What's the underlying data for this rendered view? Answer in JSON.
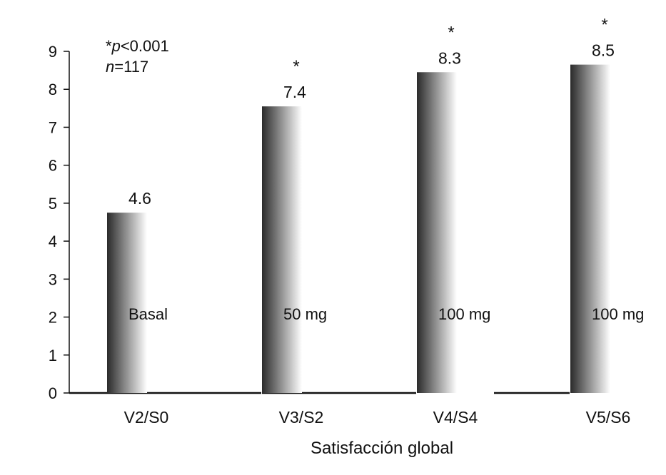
{
  "chart_data": {
    "type": "bar",
    "xlabel": "Satisfacción global",
    "ylabel": "",
    "ylim": [
      0,
      9
    ],
    "yticks": [
      "0",
      "1",
      "2",
      "3",
      "4",
      "5",
      "6",
      "7",
      "8",
      "9"
    ],
    "categories": [
      "V2/S0",
      "V3/S2",
      "V4/S4",
      "V5/S6"
    ],
    "values": [
      4.6,
      7.4,
      8.3,
      8.5
    ],
    "value_labels": [
      "4.6",
      "7.4",
      "8.3",
      "8.5"
    ],
    "dose_labels": [
      "Basal",
      "50 mg",
      "100 mg",
      "100 mg"
    ],
    "significance": [
      "",
      "*",
      "*",
      "*"
    ],
    "annotation": {
      "star": "*",
      "p_italic": "p",
      "p_rest": "<0.001",
      "n_italic": "n",
      "n_rest": "=117"
    },
    "bar_gradient": [
      "#2a2a2a",
      "#8a8a8a",
      "#ffffff"
    ],
    "grid": false,
    "legend": "none"
  }
}
